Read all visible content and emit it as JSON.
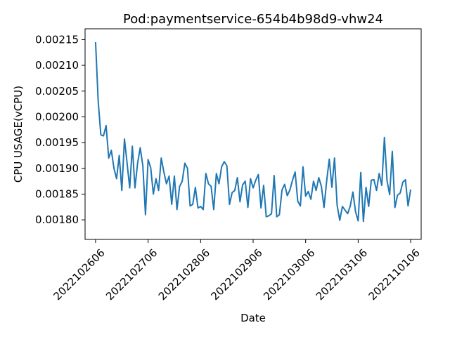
{
  "chart_data": {
    "type": "line",
    "title": "Pod:paymentservice-654b4b98d9-vhw24",
    "xlabel": "Date",
    "ylabel": "CPU USAGE(vCPU)",
    "grid": false,
    "legend": "none",
    "line_color": "#1f77b4",
    "xlim": [
      -4,
      124
    ],
    "ylim": [
      0.001762,
      0.002171
    ],
    "xticks": [
      {
        "pos": 0,
        "label": "2022102606"
      },
      {
        "pos": 20,
        "label": "2022102706"
      },
      {
        "pos": 40,
        "label": "2022102806"
      },
      {
        "pos": 60,
        "label": "2022102906"
      },
      {
        "pos": 80,
        "label": "2022103006"
      },
      {
        "pos": 100,
        "label": "2022103106"
      },
      {
        "pos": 120,
        "label": "2022110106"
      }
    ],
    "yticks": [
      {
        "value": 0.0018,
        "label": "0.00180"
      },
      {
        "value": 0.00185,
        "label": "0.00185"
      },
      {
        "value": 0.0019,
        "label": "0.00190"
      },
      {
        "value": 0.00195,
        "label": "0.00195"
      },
      {
        "value": 0.002,
        "label": "0.00200"
      },
      {
        "value": 0.00205,
        "label": "0.00205"
      },
      {
        "value": 0.0021,
        "label": "0.00210"
      },
      {
        "value": 0.00215,
        "label": "0.00215"
      }
    ],
    "series": [
      {
        "x": [
          0,
          1,
          2,
          3,
          4,
          5,
          6,
          7,
          8,
          9,
          10,
          11,
          12,
          13,
          14,
          15,
          16,
          17,
          18,
          19,
          20,
          21,
          22,
          23,
          24,
          25,
          26,
          27,
          28,
          29,
          30,
          31,
          32,
          33,
          34,
          35,
          36,
          37,
          38,
          39,
          40,
          41,
          42,
          43,
          44,
          45,
          46,
          47,
          48,
          49,
          50,
          51,
          52,
          53,
          54,
          55,
          56,
          57,
          58,
          59,
          60,
          61,
          62,
          63,
          64,
          65,
          66,
          67,
          68,
          69,
          70,
          71,
          72,
          73,
          74,
          75,
          76,
          77,
          78,
          79,
          80,
          81,
          82,
          83,
          84,
          85,
          86,
          87,
          88,
          89,
          90,
          91,
          92,
          93,
          94,
          95,
          96,
          97,
          98,
          99,
          100,
          101,
          102,
          103,
          104,
          105,
          106,
          107,
          108,
          109,
          110,
          111,
          112,
          113,
          114,
          115,
          116,
          117,
          118,
          119,
          120
        ],
        "values": [
          0.002145,
          0.00203,
          0.001965,
          0.001963,
          0.001983,
          0.00192,
          0.001935,
          0.0019,
          0.00188,
          0.001925,
          0.001857,
          0.001957,
          0.00191,
          0.001862,
          0.001943,
          0.001862,
          0.00191,
          0.00194,
          0.001905,
          0.00181,
          0.001917,
          0.001901,
          0.00185,
          0.00188,
          0.001857,
          0.00192,
          0.001893,
          0.00187,
          0.001885,
          0.00183,
          0.001885,
          0.00182,
          0.001865,
          0.001875,
          0.00191,
          0.0019,
          0.001827,
          0.00183,
          0.001863,
          0.001823,
          0.001826,
          0.00182,
          0.00189,
          0.00187,
          0.001865,
          0.00182,
          0.00189,
          0.00187,
          0.001903,
          0.001913,
          0.001905,
          0.00183,
          0.001853,
          0.001857,
          0.001882,
          0.001835,
          0.001868,
          0.001875,
          0.001824,
          0.00188,
          0.001862,
          0.001877,
          0.001888,
          0.001823,
          0.001867,
          0.001806,
          0.001808,
          0.001812,
          0.001886,
          0.001806,
          0.00181,
          0.001858,
          0.001869,
          0.001847,
          0.001858,
          0.001877,
          0.001893,
          0.001836,
          0.001827,
          0.001903,
          0.001846,
          0.001855,
          0.00184,
          0.001875,
          0.001857,
          0.001882,
          0.001865,
          0.001824,
          0.001875,
          0.001918,
          0.001863,
          0.00192,
          0.001828,
          0.001799,
          0.001826,
          0.001819,
          0.001812,
          0.001827,
          0.001854,
          0.001816,
          0.001798,
          0.001892,
          0.001797,
          0.001863,
          0.001826,
          0.001877,
          0.001878,
          0.001857,
          0.00189,
          0.001867,
          0.00196,
          0.001876,
          0.001849,
          0.001933,
          0.001824,
          0.001848,
          0.001852,
          0.001873,
          0.001878,
          0.001827,
          0.001859
        ]
      }
    ]
  }
}
